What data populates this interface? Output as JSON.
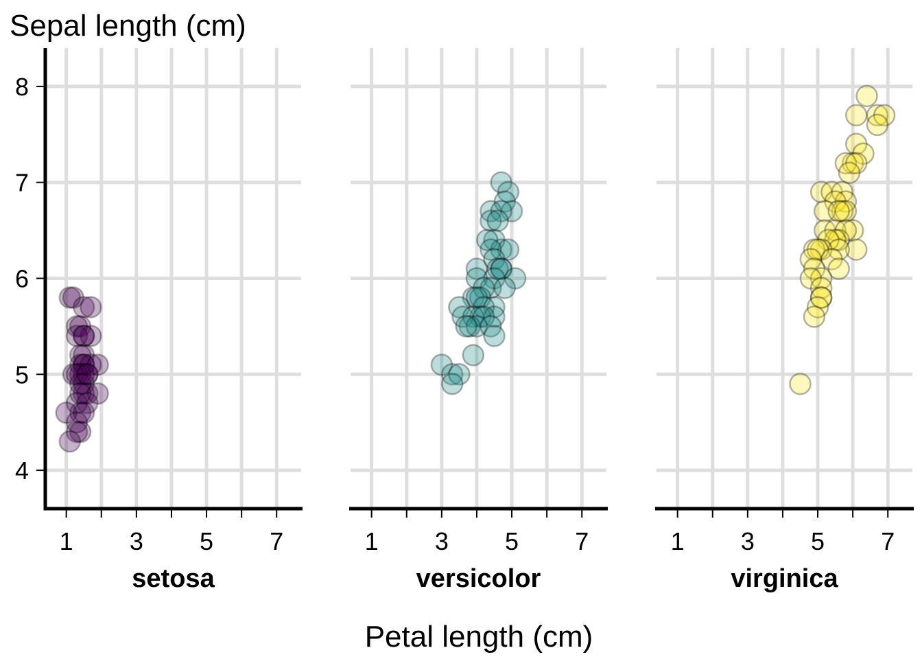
{
  "chart_data": {
    "type": "scatter",
    "layout": "small-multiples",
    "ylabel": "Sepal length (cm)",
    "xlabel": "Petal length (cm)",
    "xlim": [
      0.4,
      7.7
    ],
    "ylim": [
      3.6,
      8.4
    ],
    "x_ticks": [
      1,
      2,
      3,
      4,
      5,
      6,
      7
    ],
    "x_tick_labels": [
      "1",
      "",
      "3",
      "",
      "5",
      "",
      "7"
    ],
    "y_ticks": [
      4,
      5,
      6,
      7,
      8
    ],
    "y_tick_labels": [
      "4",
      "5",
      "6",
      "7",
      "8"
    ],
    "grid": true,
    "point_opacity": 0.3,
    "panels": [
      {
        "name": "setosa",
        "color": "#440154",
        "points": [
          [
            1.1,
            5.8
          ],
          [
            1.2,
            5.8
          ],
          [
            1.5,
            5.7
          ],
          [
            1.7,
            5.7
          ],
          [
            1.3,
            5.5
          ],
          [
            1.4,
            5.5
          ],
          [
            1.5,
            5.4
          ],
          [
            1.7,
            5.4
          ],
          [
            1.3,
            5.4
          ],
          [
            1.5,
            5.4
          ],
          [
            1.5,
            5.2
          ],
          [
            1.4,
            5.2
          ],
          [
            1.5,
            5.1
          ],
          [
            1.4,
            5.1
          ],
          [
            1.7,
            5.1
          ],
          [
            1.9,
            5.1
          ],
          [
            1.5,
            5.1
          ],
          [
            1.6,
            5.0
          ],
          [
            1.4,
            5.0
          ],
          [
            1.5,
            5.0
          ],
          [
            1.2,
            5.0
          ],
          [
            1.3,
            5.0
          ],
          [
            1.6,
            5.0
          ],
          [
            1.4,
            4.9
          ],
          [
            1.5,
            4.9
          ],
          [
            1.5,
            4.8
          ],
          [
            1.6,
            4.8
          ],
          [
            1.4,
            4.8
          ],
          [
            1.9,
            4.8
          ],
          [
            1.3,
            4.7
          ],
          [
            1.6,
            4.7
          ],
          [
            1.4,
            4.6
          ],
          [
            1.5,
            4.6
          ],
          [
            1.0,
            4.6
          ],
          [
            1.3,
            4.5
          ],
          [
            1.4,
            4.4
          ],
          [
            1.3,
            4.4
          ],
          [
            1.1,
            4.3
          ]
        ]
      },
      {
        "name": "versicolor",
        "color": "#21908C",
        "points": [
          [
            4.7,
            7.0
          ],
          [
            4.9,
            6.9
          ],
          [
            4.8,
            6.8
          ],
          [
            4.4,
            6.7
          ],
          [
            5.0,
            6.7
          ],
          [
            4.7,
            6.7
          ],
          [
            4.4,
            6.6
          ],
          [
            4.6,
            6.6
          ],
          [
            4.5,
            6.4
          ],
          [
            4.3,
            6.4
          ],
          [
            4.7,
            6.3
          ],
          [
            4.9,
            6.3
          ],
          [
            4.4,
            6.3
          ],
          [
            4.5,
            6.2
          ],
          [
            4.7,
            6.1
          ],
          [
            4.0,
            6.1
          ],
          [
            4.6,
            6.1
          ],
          [
            4.7,
            6.1
          ],
          [
            5.1,
            6.0
          ],
          [
            4.5,
            6.0
          ],
          [
            4.0,
            6.0
          ],
          [
            4.4,
            5.9
          ],
          [
            4.2,
            5.9
          ],
          [
            4.8,
            5.9
          ],
          [
            3.9,
            5.8
          ],
          [
            4.1,
            5.8
          ],
          [
            4.0,
            5.8
          ],
          [
            3.5,
            5.7
          ],
          [
            4.5,
            5.7
          ],
          [
            4.2,
            5.7
          ],
          [
            4.1,
            5.6
          ],
          [
            3.6,
            5.6
          ],
          [
            4.5,
            5.6
          ],
          [
            3.9,
            5.6
          ],
          [
            4.2,
            5.6
          ],
          [
            3.8,
            5.5
          ],
          [
            4.0,
            5.5
          ],
          [
            4.4,
            5.5
          ],
          [
            3.7,
            5.5
          ],
          [
            4.5,
            5.4
          ],
          [
            3.9,
            5.2
          ],
          [
            3.0,
            5.1
          ],
          [
            3.3,
            5.0
          ],
          [
            3.5,
            5.0
          ],
          [
            3.3,
            4.9
          ]
        ]
      },
      {
        "name": "virginica",
        "color": "#FDE725",
        "points": [
          [
            6.4,
            7.9
          ],
          [
            6.7,
            7.7
          ],
          [
            6.9,
            7.7
          ],
          [
            6.1,
            7.7
          ],
          [
            6.7,
            7.6
          ],
          [
            6.1,
            7.4
          ],
          [
            6.3,
            7.3
          ],
          [
            6.0,
            7.2
          ],
          [
            5.8,
            7.2
          ],
          [
            6.1,
            7.2
          ],
          [
            5.9,
            7.1
          ],
          [
            5.1,
            6.9
          ],
          [
            5.4,
            6.9
          ],
          [
            5.7,
            6.9
          ],
          [
            5.8,
            6.8
          ],
          [
            5.5,
            6.8
          ],
          [
            5.7,
            6.7
          ],
          [
            5.8,
            6.7
          ],
          [
            5.2,
            6.7
          ],
          [
            5.6,
            6.7
          ],
          [
            6.0,
            6.5
          ],
          [
            5.2,
            6.5
          ],
          [
            5.5,
            6.5
          ],
          [
            5.8,
            6.5
          ],
          [
            5.6,
            6.4
          ],
          [
            5.5,
            6.4
          ],
          [
            5.3,
            6.4
          ],
          [
            6.1,
            6.3
          ],
          [
            5.6,
            6.3
          ],
          [
            5.1,
            6.3
          ],
          [
            4.9,
            6.3
          ],
          [
            5.0,
            6.3
          ],
          [
            5.4,
            6.2
          ],
          [
            4.8,
            6.2
          ],
          [
            5.6,
            6.1
          ],
          [
            4.9,
            6.1
          ],
          [
            5.1,
            6.0
          ],
          [
            4.8,
            6.0
          ],
          [
            5.1,
            5.9
          ],
          [
            5.1,
            5.8
          ],
          [
            5.1,
            5.8
          ],
          [
            5.0,
            5.7
          ],
          [
            4.9,
            5.6
          ],
          [
            4.5,
            4.9
          ]
        ]
      }
    ]
  }
}
